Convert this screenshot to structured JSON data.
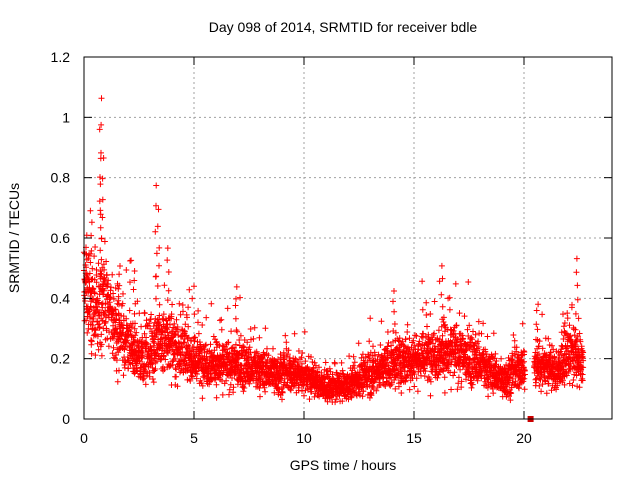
{
  "chart_data": {
    "type": "scatter",
    "title": "Day 098 of 2014, SRMTID for receiver bdle",
    "xlabel": "GPS time / hours",
    "ylabel": "SRMTID / TECUs",
    "xlim": [
      0,
      24
    ],
    "ylim": [
      0,
      1.2
    ],
    "xticks": [
      0,
      5,
      10,
      15,
      20
    ],
    "yticks": [
      0,
      0.2,
      0.4,
      0.6,
      0.8,
      1,
      1.2
    ],
    "grid": true,
    "marker": "+",
    "series": [
      {
        "name": "SRMTID",
        "color": "#ff0000",
        "description": "dense scatter of SRMTID values vs GPS time",
        "profile": {
          "x": [
            0,
            0.3,
            0.8,
            1.5,
            2.5,
            3.3,
            4,
            5,
            6,
            7,
            8,
            9,
            10,
            11,
            12,
            13,
            14,
            15,
            16,
            17,
            18,
            19,
            20,
            21,
            21.5,
            22,
            22.7
          ],
          "y": [
            0.45,
            0.35,
            0.4,
            0.3,
            0.2,
            0.25,
            0.25,
            0.2,
            0.18,
            0.18,
            0.16,
            0.15,
            0.15,
            0.1,
            0.11,
            0.15,
            0.18,
            0.2,
            0.22,
            0.22,
            0.18,
            0.13,
            0.17,
            0.18,
            0.15,
            0.22,
            0.18
          ]
        },
        "peaks": [
          {
            "x": 0.1,
            "y": 0.6
          },
          {
            "x": 0.35,
            "y": 0.7
          },
          {
            "x": 0.75,
            "y": 0.95
          },
          {
            "x": 0.8,
            "y": 1.06
          },
          {
            "x": 0.85,
            "y": 0.86
          },
          {
            "x": 1.6,
            "y": 0.5
          },
          {
            "x": 2.3,
            "y": 0.5
          },
          {
            "x": 3.3,
            "y": 0.78
          },
          {
            "x": 3.4,
            "y": 0.7
          },
          {
            "x": 3.8,
            "y": 0.57
          },
          {
            "x": 6.9,
            "y": 0.44
          },
          {
            "x": 14.1,
            "y": 0.42
          },
          {
            "x": 16.3,
            "y": 0.5
          },
          {
            "x": 20.6,
            "y": 0.38
          },
          {
            "x": 22.4,
            "y": 0.53
          }
        ]
      }
    ],
    "annotations": [
      {
        "type": "square-marker",
        "x": 20.3,
        "y": 0,
        "color": "#cc0000"
      }
    ]
  }
}
